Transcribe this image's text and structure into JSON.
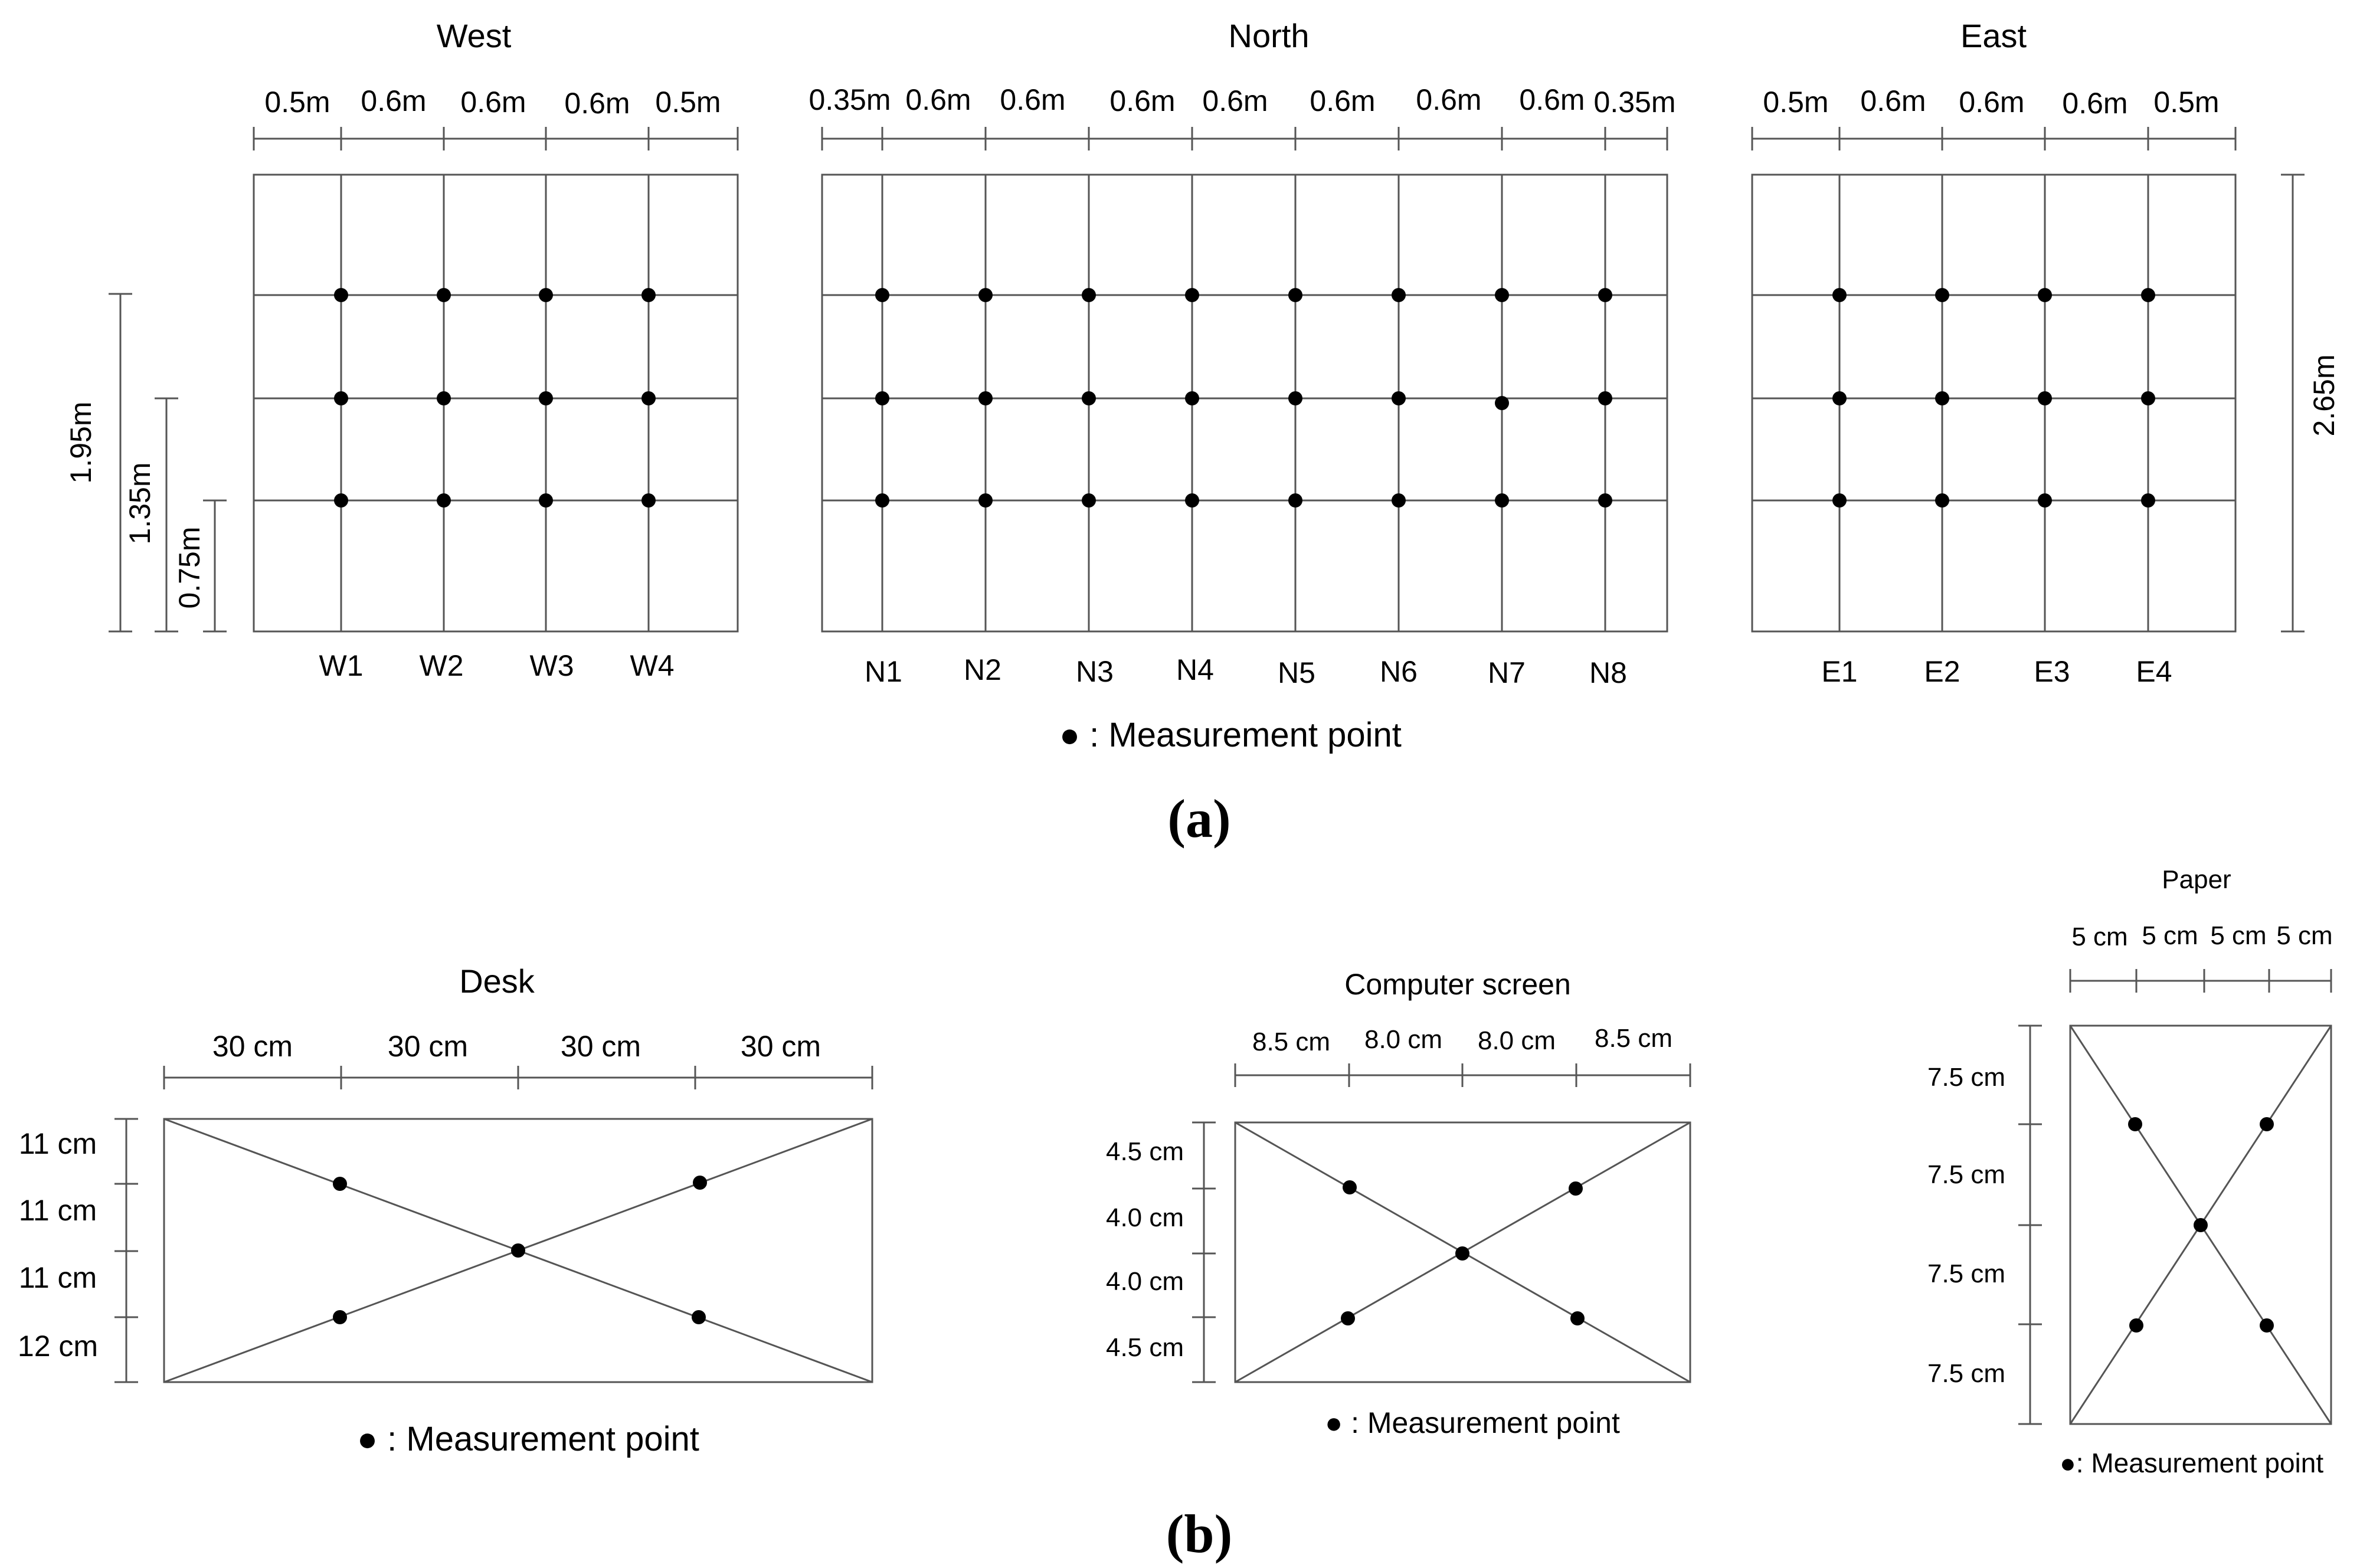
{
  "panel_a": {
    "label": "(a)",
    "legend": "● : Measurement point",
    "west": {
      "title": "West",
      "spacings": [
        "0.5m",
        "0.6m",
        "0.6m",
        "0.6m",
        "0.5m"
      ],
      "points": [
        "W1",
        "W2",
        "W3",
        "W4"
      ]
    },
    "north": {
      "title": "North",
      "spacings": [
        "0.35m",
        "0.6m",
        "0.6m",
        "0.6m",
        "0.6m",
        "0.6m",
        "0.6m",
        "0.6m",
        "0.35m"
      ],
      "points": [
        "N1",
        "N2",
        "N3",
        "N4",
        "N5",
        "N6",
        "N7",
        "N8"
      ]
    },
    "east": {
      "title": "East",
      "spacings": [
        "0.5m",
        "0.6m",
        "0.6m",
        "0.6m",
        "0.5m"
      ],
      "points": [
        "E1",
        "E2",
        "E3",
        "E4"
      ]
    },
    "heights": [
      "1.95m",
      "1.35m",
      "0.75m"
    ],
    "wall_height": "2.65m"
  },
  "panel_b": {
    "label": "(b)",
    "desk": {
      "title": "Desk",
      "widths": [
        "30 cm",
        "30 cm",
        "30 cm",
        "30 cm"
      ],
      "heights": [
        "11 cm",
        "11 cm",
        "11 cm",
        "12 cm"
      ],
      "legend": "● : Measurement point"
    },
    "screen": {
      "title": "Computer screen",
      "widths": [
        "8.5 cm",
        "8.0 cm",
        "8.0 cm",
        "8.5 cm"
      ],
      "heights": [
        "4.5 cm",
        "4.0 cm",
        "4.0 cm",
        "4.5 cm"
      ],
      "legend": "● : Measurement point"
    },
    "paper": {
      "title": "Paper",
      "widths": [
        "5 cm",
        "5 cm",
        "5 cm",
        "5 cm"
      ],
      "heights": [
        "7.5 cm",
        "7.5 cm",
        "7.5 cm",
        "7.5 cm"
      ],
      "legend": "●: Measurement point"
    }
  }
}
